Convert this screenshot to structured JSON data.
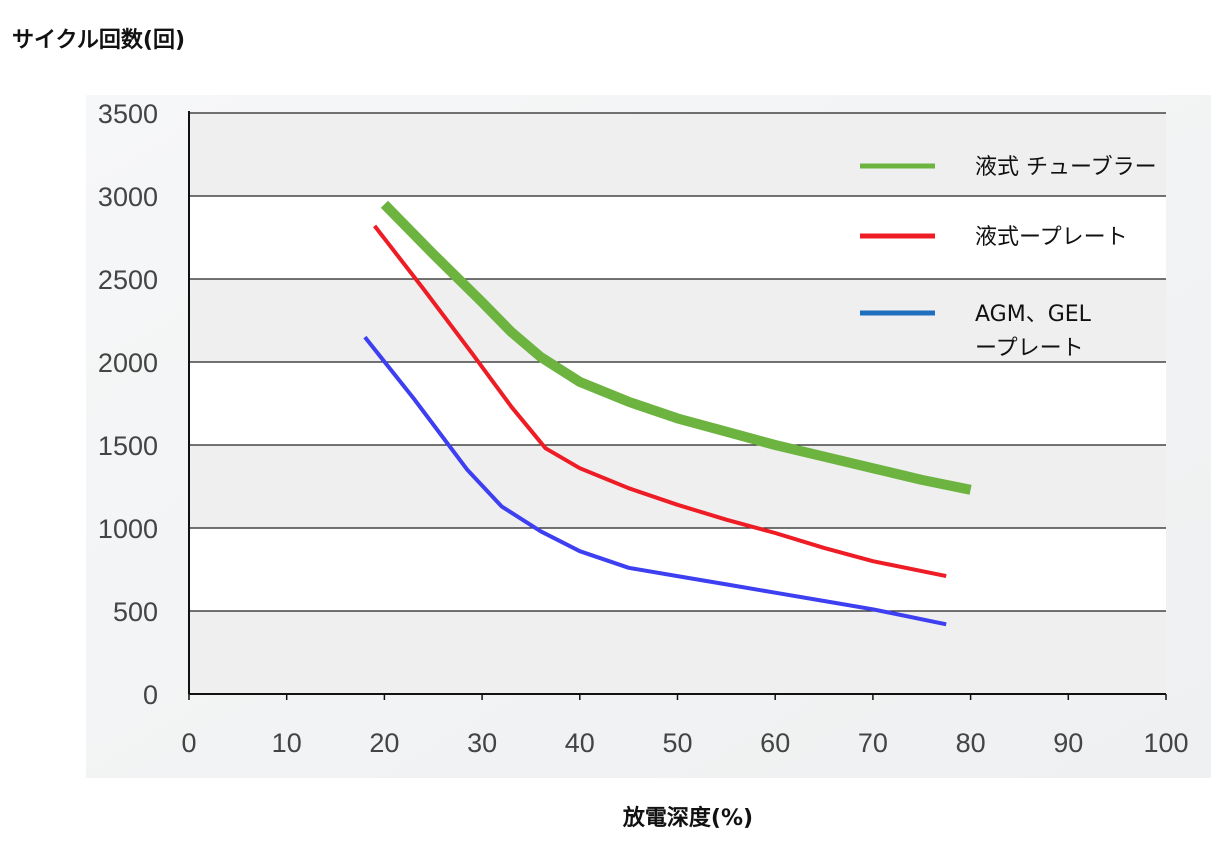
{
  "chart_data": {
    "type": "line",
    "ylabel": "サイクル回数(回)",
    "xlabel": "放電深度(%)",
    "xlim": [
      0,
      100
    ],
    "ylim": [
      0,
      3500
    ],
    "x_ticks": [
      "0",
      "10",
      "20",
      "30",
      "40",
      "50",
      "60",
      "70",
      "80",
      "90",
      "100"
    ],
    "y_ticks": [
      "0",
      "500",
      "1000",
      "1500",
      "2000",
      "2500",
      "3000",
      "3500"
    ],
    "grid": "horizontal",
    "legend_position": "top-right",
    "series": [
      {
        "name": "液式 チューブラー",
        "color": "#6cb43f",
        "x": [
          20,
          25,
          30,
          33,
          36,
          40,
          45,
          50,
          55,
          60,
          65,
          70,
          75,
          80
        ],
        "y": [
          2950,
          2650,
          2360,
          2180,
          2030,
          1880,
          1760,
          1660,
          1580,
          1500,
          1430,
          1360,
          1290,
          1230
        ]
      },
      {
        "name": "液式ープレート",
        "color": "#ee1c25",
        "x": [
          19,
          24,
          29,
          33,
          36.5,
          40,
          45,
          50,
          55,
          60,
          65,
          70,
          77.5
        ],
        "y": [
          2820,
          2440,
          2050,
          1730,
          1480,
          1360,
          1240,
          1140,
          1050,
          970,
          880,
          800,
          710
        ]
      },
      {
        "name": "AGM、GELープレート",
        "name_lines": [
          "AGM、GEL",
          "ープレート"
        ],
        "color": "#3d3ff0",
        "legend_color": "#1f6fbf",
        "x": [
          18,
          23,
          28.5,
          32,
          36,
          40,
          45,
          50,
          55,
          60,
          65,
          70,
          77.5
        ],
        "y": [
          2150,
          1780,
          1350,
          1130,
          980,
          860,
          760,
          710,
          660,
          610,
          560,
          510,
          420
        ]
      }
    ]
  }
}
